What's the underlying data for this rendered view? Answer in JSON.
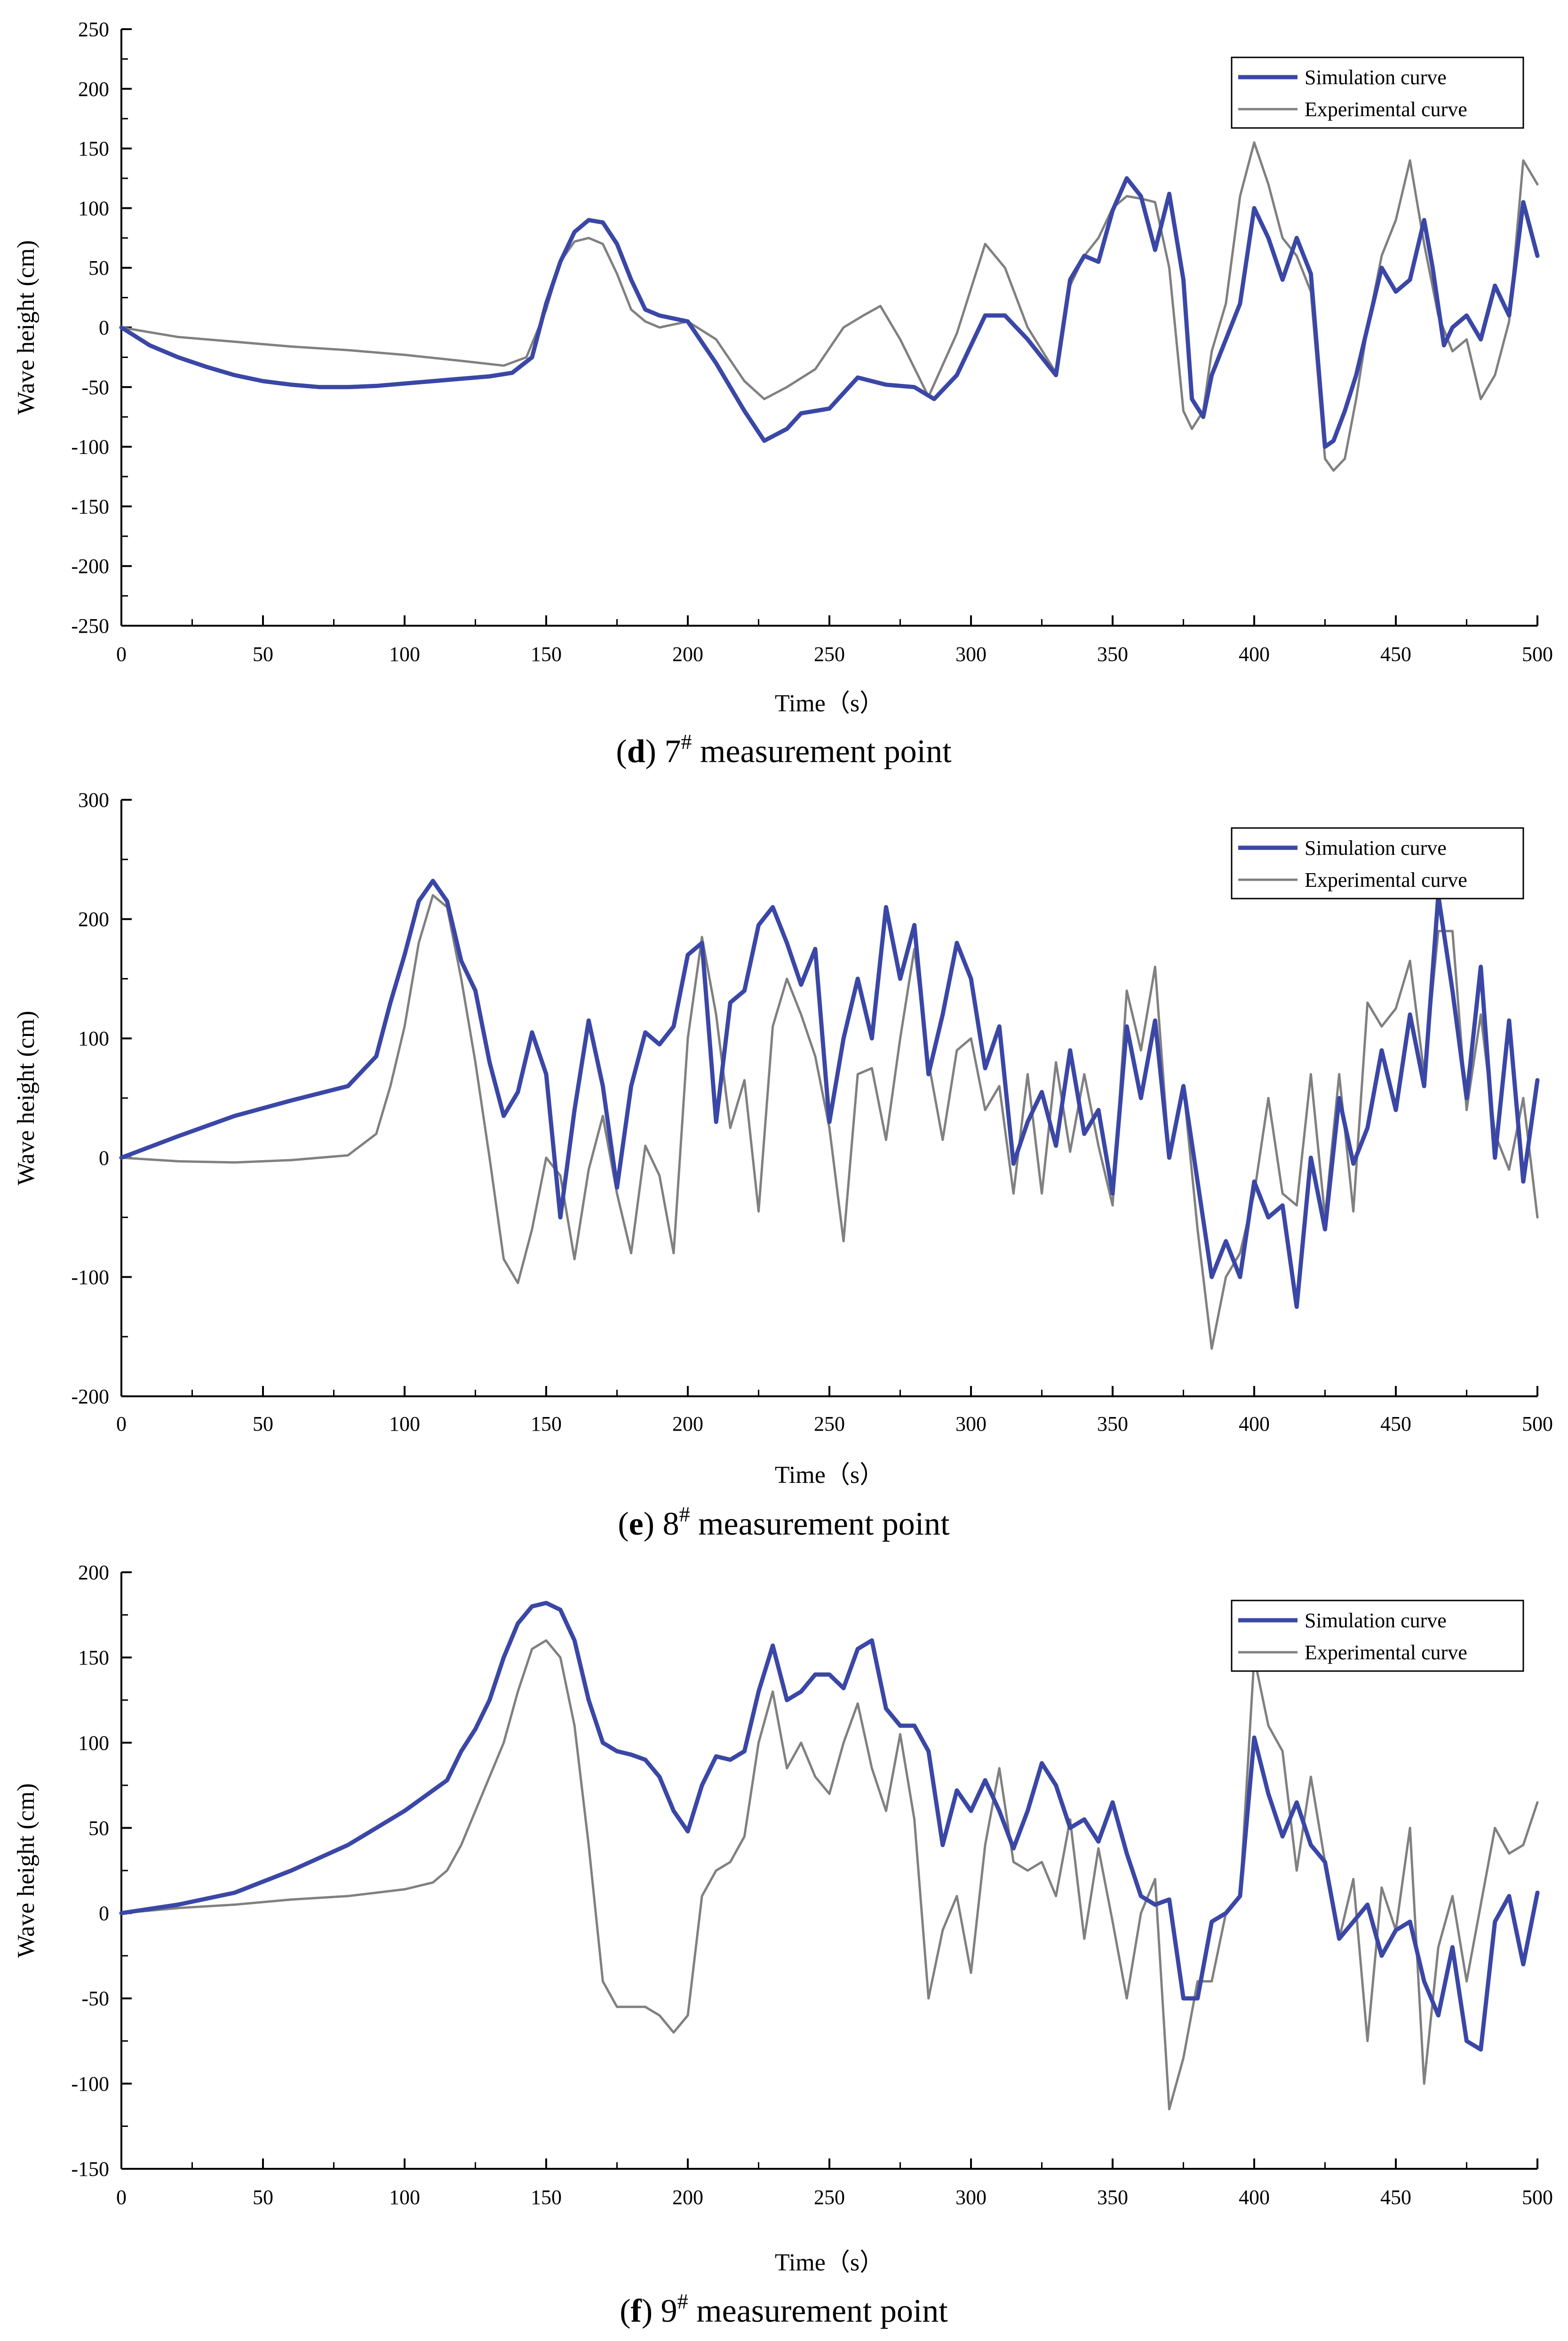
{
  "colors": {
    "simulation": "#3a47a6",
    "experimental": "#808080",
    "axis": "#000000",
    "background": "#ffffff"
  },
  "chart_data": [
    {
      "type": "line",
      "panel": "d",
      "caption_letter": "d",
      "caption_number": "7",
      "caption_mark": "#",
      "caption_rest": "measurement point",
      "xlabel": "Time（s）",
      "ylabel": "Wave height (cm)",
      "xlim": [
        0,
        500
      ],
      "ylim": [
        -250,
        250
      ],
      "xticks": [
        0,
        50,
        100,
        150,
        200,
        250,
        300,
        350,
        400,
        450,
        500
      ],
      "yticks": [
        -250,
        -200,
        -150,
        -100,
        -50,
        0,
        50,
        100,
        150,
        200,
        250
      ],
      "legend_position": "top-right",
      "series": [
        {
          "name": "Simulation curve",
          "x": [
            0,
            10,
            20,
            30,
            40,
            50,
            60,
            70,
            80,
            90,
            100,
            110,
            120,
            130,
            138,
            145,
            150,
            155,
            160,
            165,
            170,
            175,
            180,
            185,
            190,
            200,
            210,
            220,
            227,
            235,
            240,
            250,
            260,
            270,
            280,
            287,
            295,
            305,
            312,
            320,
            330,
            335,
            340,
            345,
            350,
            355,
            360,
            365,
            370,
            375,
            378,
            382,
            385,
            390,
            395,
            400,
            405,
            410,
            415,
            420,
            425,
            428,
            432,
            436,
            440,
            445,
            450,
            455,
            460,
            463,
            467,
            470,
            475,
            480,
            485,
            490,
            495,
            500
          ],
          "values": [
            0,
            -15,
            -25,
            -33,
            -40,
            -45,
            -48,
            -50,
            -50,
            -49,
            -47,
            -45,
            -43,
            -41,
            -38,
            -25,
            20,
            55,
            80,
            90,
            88,
            70,
            40,
            15,
            10,
            5,
            -30,
            -70,
            -95,
            -85,
            -72,
            -68,
            -42,
            -48,
            -50,
            -60,
            -40,
            10,
            10,
            -10,
            -40,
            40,
            60,
            55,
            98,
            125,
            110,
            65,
            112,
            40,
            -60,
            -75,
            -40,
            -10,
            20,
            100,
            75,
            40,
            75,
            45,
            -100,
            -95,
            -70,
            -40,
            0,
            50,
            30,
            40,
            90,
            50,
            -15,
            0,
            10,
            -10,
            35,
            10,
            105,
            60
          ]
        },
        {
          "name": "Experimental curve",
          "x": [
            0,
            20,
            40,
            60,
            80,
            100,
            120,
            135,
            143,
            150,
            155,
            160,
            165,
            170,
            175,
            180,
            185,
            190,
            200,
            210,
            220,
            227,
            235,
            245,
            255,
            262,
            268,
            275,
            285,
            295,
            305,
            312,
            320,
            330,
            335,
            340,
            345,
            350,
            355,
            360,
            365,
            370,
            375,
            378,
            382,
            385,
            390,
            395,
            400,
            405,
            410,
            415,
            420,
            425,
            428,
            432,
            436,
            440,
            445,
            450,
            455,
            460,
            465,
            470,
            475,
            480,
            485,
            490,
            495,
            500
          ],
          "values": [
            0,
            -8,
            -12,
            -16,
            -19,
            -23,
            -28,
            -32,
            -25,
            15,
            55,
            72,
            75,
            70,
            45,
            15,
            5,
            0,
            5,
            -10,
            -45,
            -60,
            -50,
            -35,
            0,
            10,
            18,
            -10,
            -58,
            -5,
            70,
            50,
            0,
            -38,
            35,
            60,
            75,
            100,
            110,
            108,
            105,
            50,
            -70,
            -85,
            -70,
            -20,
            20,
            110,
            155,
            120,
            75,
            60,
            30,
            -110,
            -120,
            -110,
            -60,
            0,
            60,
            90,
            140,
            70,
            10,
            -20,
            -10,
            -60,
            -40,
            5,
            140,
            120
          ]
        }
      ]
    },
    {
      "type": "line",
      "panel": "e",
      "caption_letter": "e",
      "caption_number": "8",
      "caption_mark": "#",
      "caption_rest": "measurement point",
      "xlabel": "Time（s）",
      "ylabel": "Wave height (cm)",
      "xlim": [
        0,
        500
      ],
      "ylim": [
        -200,
        300
      ],
      "xticks": [
        0,
        50,
        100,
        150,
        200,
        250,
        300,
        350,
        400,
        450,
        500
      ],
      "yticks": [
        -200,
        -100,
        0,
        100,
        200,
        300
      ],
      "legend_position": "top-right",
      "series": [
        {
          "name": "Simulation curve",
          "x": [
            0,
            20,
            40,
            60,
            80,
            90,
            95,
            100,
            105,
            110,
            115,
            120,
            125,
            130,
            135,
            140,
            145,
            150,
            155,
            160,
            165,
            170,
            175,
            180,
            185,
            190,
            195,
            200,
            205,
            210,
            215,
            220,
            225,
            230,
            235,
            240,
            245,
            250,
            255,
            260,
            265,
            270,
            275,
            280,
            285,
            290,
            295,
            300,
            305,
            310,
            315,
            320,
            325,
            330,
            335,
            340,
            345,
            350,
            355,
            360,
            365,
            370,
            375,
            380,
            385,
            390,
            395,
            400,
            405,
            410,
            415,
            420,
            425,
            430,
            435,
            440,
            445,
            450,
            455,
            460,
            465,
            470,
            475,
            480,
            485,
            490,
            495,
            500
          ],
          "values": [
            0,
            18,
            35,
            48,
            60,
            85,
            130,
            170,
            215,
            232,
            215,
            165,
            140,
            80,
            35,
            55,
            105,
            70,
            -50,
            40,
            115,
            60,
            -25,
            60,
            105,
            95,
            110,
            170,
            180,
            30,
            130,
            140,
            195,
            210,
            180,
            145,
            175,
            30,
            100,
            150,
            100,
            210,
            150,
            195,
            70,
            120,
            180,
            150,
            75,
            110,
            -5,
            30,
            55,
            10,
            90,
            20,
            40,
            -30,
            110,
            50,
            115,
            0,
            60,
            -20,
            -100,
            -70,
            -100,
            -20,
            -50,
            -40,
            -125,
            0,
            -60,
            50,
            -5,
            25,
            90,
            40,
            120,
            60,
            220,
            140,
            50,
            160,
            0,
            115,
            -20,
            65
          ]
        },
        {
          "name": "Experimental curve",
          "x": [
            0,
            20,
            40,
            60,
            80,
            90,
            95,
            100,
            105,
            110,
            115,
            120,
            125,
            130,
            135,
            140,
            145,
            150,
            155,
            160,
            165,
            170,
            175,
            180,
            185,
            190,
            195,
            200,
            205,
            210,
            215,
            220,
            225,
            230,
            235,
            240,
            245,
            250,
            255,
            260,
            265,
            270,
            275,
            280,
            285,
            290,
            295,
            300,
            305,
            310,
            315,
            320,
            325,
            330,
            335,
            340,
            345,
            350,
            355,
            360,
            365,
            370,
            375,
            380,
            385,
            390,
            395,
            400,
            405,
            410,
            415,
            420,
            425,
            430,
            435,
            440,
            445,
            450,
            455,
            460,
            465,
            470,
            475,
            480,
            485,
            490,
            495,
            500
          ],
          "values": [
            0,
            -3,
            -4,
            -2,
            2,
            20,
            60,
            110,
            180,
            220,
            210,
            150,
            80,
            0,
            -85,
            -105,
            -60,
            0,
            -15,
            -85,
            -10,
            35,
            -30,
            -80,
            10,
            -15,
            -80,
            100,
            185,
            120,
            25,
            65,
            -45,
            110,
            150,
            120,
            85,
            25,
            -70,
            70,
            75,
            15,
            100,
            175,
            80,
            15,
            90,
            100,
            40,
            60,
            -30,
            70,
            -30,
            80,
            5,
            70,
            10,
            -40,
            140,
            90,
            160,
            0,
            60,
            -60,
            -160,
            -100,
            -80,
            -30,
            50,
            -30,
            -40,
            70,
            -50,
            70,
            -45,
            130,
            110,
            125,
            165,
            70,
            190,
            190,
            40,
            120,
            20,
            -10,
            50,
            -50
          ]
        }
      ]
    },
    {
      "type": "line",
      "panel": "f",
      "caption_letter": "f",
      "caption_number": "9",
      "caption_mark": "#",
      "caption_rest": "measurement point",
      "xlabel": "Time（s）",
      "ylabel": "Wave height (cm)",
      "xlim": [
        0,
        500
      ],
      "ylim": [
        -150,
        200
      ],
      "xticks": [
        0,
        50,
        100,
        150,
        200,
        250,
        300,
        350,
        400,
        450,
        500
      ],
      "yticks": [
        -150,
        -100,
        -50,
        0,
        50,
        100,
        150,
        200
      ],
      "legend_position": "top-right",
      "series": [
        {
          "name": "Simulation curve",
          "x": [
            0,
            20,
            40,
            60,
            80,
            100,
            115,
            120,
            125,
            130,
            135,
            140,
            145,
            150,
            155,
            160,
            165,
            170,
            175,
            180,
            185,
            190,
            195,
            200,
            205,
            210,
            215,
            220,
            225,
            230,
            235,
            240,
            245,
            250,
            255,
            260,
            265,
            270,
            275,
            280,
            285,
            290,
            295,
            300,
            305,
            310,
            315,
            320,
            325,
            330,
            335,
            340,
            345,
            350,
            355,
            360,
            365,
            370,
            375,
            380,
            385,
            390,
            395,
            400,
            405,
            410,
            415,
            420,
            425,
            430,
            435,
            440,
            445,
            450,
            455,
            460,
            465,
            470,
            475,
            480,
            485,
            490,
            495,
            500
          ],
          "values": [
            0,
            5,
            12,
            25,
            40,
            60,
            78,
            95,
            108,
            125,
            150,
            170,
            180,
            182,
            178,
            160,
            125,
            100,
            95,
            93,
            90,
            80,
            60,
            48,
            75,
            92,
            90,
            95,
            130,
            157,
            125,
            130,
            140,
            140,
            132,
            155,
            160,
            120,
            110,
            110,
            95,
            40,
            72,
            60,
            78,
            60,
            38,
            60,
            88,
            75,
            50,
            55,
            42,
            65,
            35,
            10,
            5,
            8,
            -50,
            -50,
            -5,
            0,
            10,
            103,
            70,
            45,
            65,
            40,
            30,
            -15,
            -5,
            5,
            -25,
            -10,
            -5,
            -40,
            -60,
            -20,
            -75,
            -80,
            -5,
            10,
            -30,
            12
          ]
        },
        {
          "name": "Experimental curve",
          "x": [
            0,
            20,
            40,
            60,
            80,
            100,
            110,
            115,
            120,
            125,
            130,
            135,
            140,
            145,
            150,
            155,
            160,
            165,
            170,
            175,
            180,
            185,
            190,
            195,
            200,
            205,
            210,
            215,
            220,
            225,
            230,
            235,
            240,
            245,
            250,
            255,
            260,
            265,
            270,
            275,
            280,
            285,
            290,
            295,
            300,
            305,
            310,
            315,
            320,
            325,
            330,
            335,
            340,
            345,
            350,
            355,
            360,
            365,
            370,
            375,
            380,
            385,
            390,
            395,
            400,
            405,
            410,
            415,
            420,
            425,
            430,
            435,
            440,
            445,
            450,
            455,
            460,
            465,
            470,
            475,
            480,
            485,
            490,
            495,
            500
          ],
          "values": [
            0,
            3,
            5,
            8,
            10,
            14,
            18,
            25,
            40,
            60,
            80,
            100,
            130,
            155,
            160,
            150,
            110,
            40,
            -40,
            -55,
            -55,
            -55,
            -60,
            -70,
            -60,
            10,
            25,
            30,
            45,
            100,
            130,
            85,
            100,
            80,
            70,
            100,
            123,
            85,
            60,
            105,
            55,
            -50,
            -10,
            10,
            -35,
            40,
            85,
            30,
            25,
            30,
            10,
            55,
            -15,
            38,
            -5,
            -50,
            0,
            20,
            -115,
            -85,
            -40,
            -40,
            0,
            10,
            150,
            110,
            95,
            25,
            80,
            30,
            -15,
            20,
            -75,
            15,
            -10,
            50,
            -100,
            -20,
            10,
            -40,
            5,
            50,
            35,
            40,
            65
          ]
        }
      ]
    }
  ]
}
